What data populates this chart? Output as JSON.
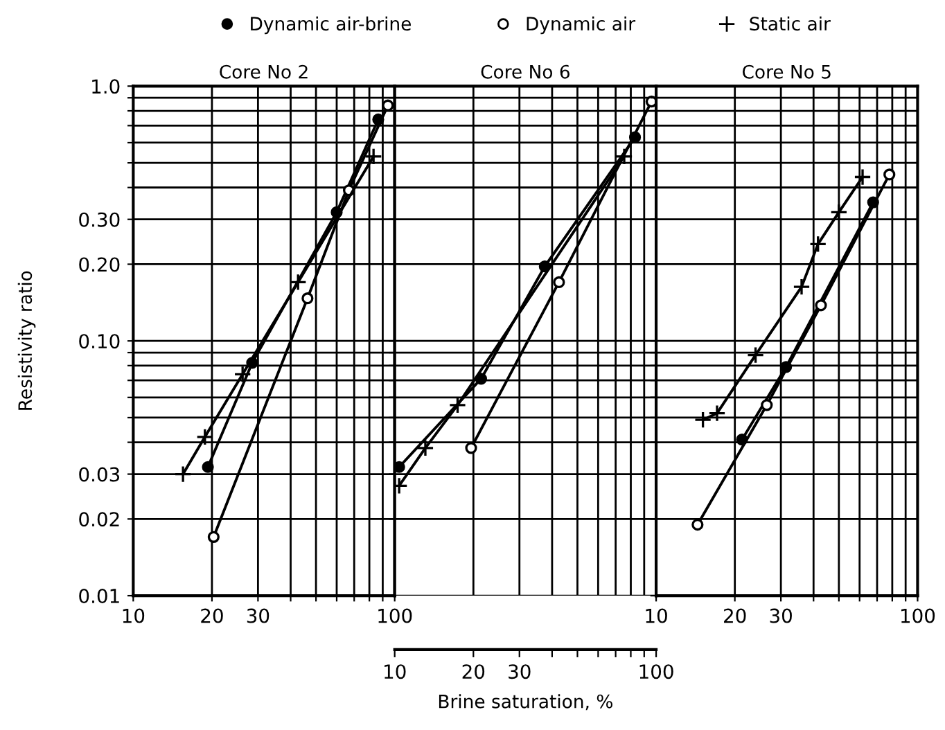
{
  "chart_data": [
    {
      "type": "line",
      "title": "Core No 2",
      "ylabel": "Resistivity ratio",
      "log": "xy",
      "grid": true,
      "legend": "top",
      "xlim": [
        10,
        100
      ],
      "xticks": [
        10,
        20,
        30,
        {
          "value": 40,
          "label": null
        },
        {
          "value": 50,
          "label": null
        },
        {
          "value": 60,
          "label": null
        },
        {
          "value": 70,
          "label": null
        },
        {
          "value": 80,
          "label": null
        },
        {
          "value": 90,
          "label": null
        },
        100
      ],
      "ylim": [
        0.01,
        1.0
      ],
      "yticks": [
        {
          "value": 0.01,
          "label": "0.01"
        },
        {
          "value": 0.02,
          "label": "0.02"
        },
        {
          "value": 0.03,
          "label": "0.03"
        },
        {
          "value": 0.04,
          "label": null
        },
        {
          "value": 0.05,
          "label": null
        },
        {
          "value": 0.06,
          "label": null
        },
        {
          "value": 0.07,
          "label": null
        },
        {
          "value": 0.08,
          "label": null
        },
        {
          "value": 0.09,
          "label": null
        },
        {
          "value": 0.1,
          "label": "0.10"
        },
        {
          "value": 0.2,
          "label": "0.20"
        },
        {
          "value": 0.3,
          "label": "0.30"
        },
        {
          "value": 0.4,
          "label": null
        },
        {
          "value": 0.5,
          "label": null
        },
        {
          "value": 0.6,
          "label": null
        },
        {
          "value": 0.7,
          "label": null
        },
        {
          "value": 0.8,
          "label": null
        },
        {
          "value": 0.9,
          "label": null
        },
        {
          "value": 1.0,
          "label": "1.0"
        }
      ],
      "series": [
        {
          "name": "Dynamic air-brine",
          "color": "#000000",
          "marker": "circle",
          "x": [
            19.3,
            28.5,
            60,
            86.5
          ],
          "values": [
            0.032,
            0.082,
            0.32,
            0.74
          ]
        },
        {
          "name": "Dynamic air",
          "color": "#000000",
          "marker": "circle",
          "x": [
            20.3,
            46.4,
            66.8,
            94.2
          ],
          "values": [
            0.017,
            0.147,
            0.39,
            0.84
          ]
        },
        {
          "name": "Static air",
          "color": "#000000",
          "marker": "cross",
          "x": [
            15.5,
            18.8,
            26.2,
            42.7,
            83
          ],
          "values": [
            0.03,
            0.042,
            0.074,
            0.17,
            0.53
          ]
        }
      ]
    },
    {
      "type": "line",
      "title": "Core No 6",
      "xlabel": "Brine saturation, %",
      "log": "xy",
      "grid": true,
      "tick_labels": "x",
      "xlim": [
        10,
        100
      ],
      "xticks": [
        10,
        20,
        30,
        {
          "value": 40,
          "label": null
        },
        {
          "value": 50,
          "label": null
        },
        {
          "value": 60,
          "label": null
        },
        {
          "value": 70,
          "label": null
        },
        {
          "value": 80,
          "label": null
        },
        {
          "value": 90,
          "label": null
        },
        100
      ],
      "ylim": [
        0.01,
        1.0
      ],
      "yticks": [
        0.01,
        0.02,
        0.03,
        0.04,
        0.05,
        0.06,
        0.07,
        0.08,
        0.09,
        0.1,
        0.2,
        0.3,
        0.4,
        0.5,
        0.6,
        0.7,
        0.8,
        0.9,
        1.0
      ],
      "series": [
        {
          "color": "#000000",
          "marker": "circle",
          "x": [
            10.4,
            21.4,
            37.5,
            83
          ],
          "values": [
            0.032,
            0.071,
            0.196,
            0.63
          ]
        },
        {
          "color": "#000000",
          "marker": "circle",
          "x": [
            19.6,
            42.5,
            96
          ],
          "values": [
            0.038,
            0.17,
            0.87
          ]
        },
        {
          "color": "#000000",
          "marker": "cross",
          "x": [
            10.4,
            13.1,
            17.4,
            75.5
          ],
          "values": [
            0.027,
            0.038,
            0.056,
            0.53
          ]
        }
      ]
    },
    {
      "type": "line",
      "title": "Core No 5",
      "log": "xy",
      "grid": true,
      "tick_labels": "x",
      "xlim": [
        10,
        100
      ],
      "xticks": [
        10,
        20,
        30,
        {
          "value": 40,
          "label": null
        },
        {
          "value": 50,
          "label": null
        },
        {
          "value": 60,
          "label": null
        },
        {
          "value": 70,
          "label": null
        },
        {
          "value": 80,
          "label": null
        },
        {
          "value": 90,
          "label": null
        },
        100
      ],
      "ylim": [
        0.01,
        1.0
      ],
      "yticks": [
        0.01,
        0.02,
        0.03,
        0.04,
        0.05,
        0.06,
        0.07,
        0.08,
        0.09,
        0.1,
        0.2,
        0.3,
        0.4,
        0.5,
        0.6,
        0.7,
        0.8,
        0.9,
        1.0
      ],
      "series": [
        {
          "color": "#000000",
          "marker": "circle",
          "x": [
            21.3,
            31.4,
            67.6
          ],
          "values": [
            0.041,
            0.079,
            0.35
          ]
        },
        {
          "color": "#000000",
          "marker": "circle",
          "x": [
            14.4,
            26.5,
            42.7,
            78
          ],
          "values": [
            0.019,
            0.056,
            0.138,
            0.45
          ]
        },
        {
          "color": "#000000",
          "marker": "cross",
          "x": [
            15.1,
            17.1,
            24,
            36,
            41.6,
            50,
            61.6
          ],
          "values": [
            0.049,
            0.052,
            0.088,
            0.163,
            0.24,
            0.32,
            0.44
          ]
        }
      ]
    }
  ]
}
